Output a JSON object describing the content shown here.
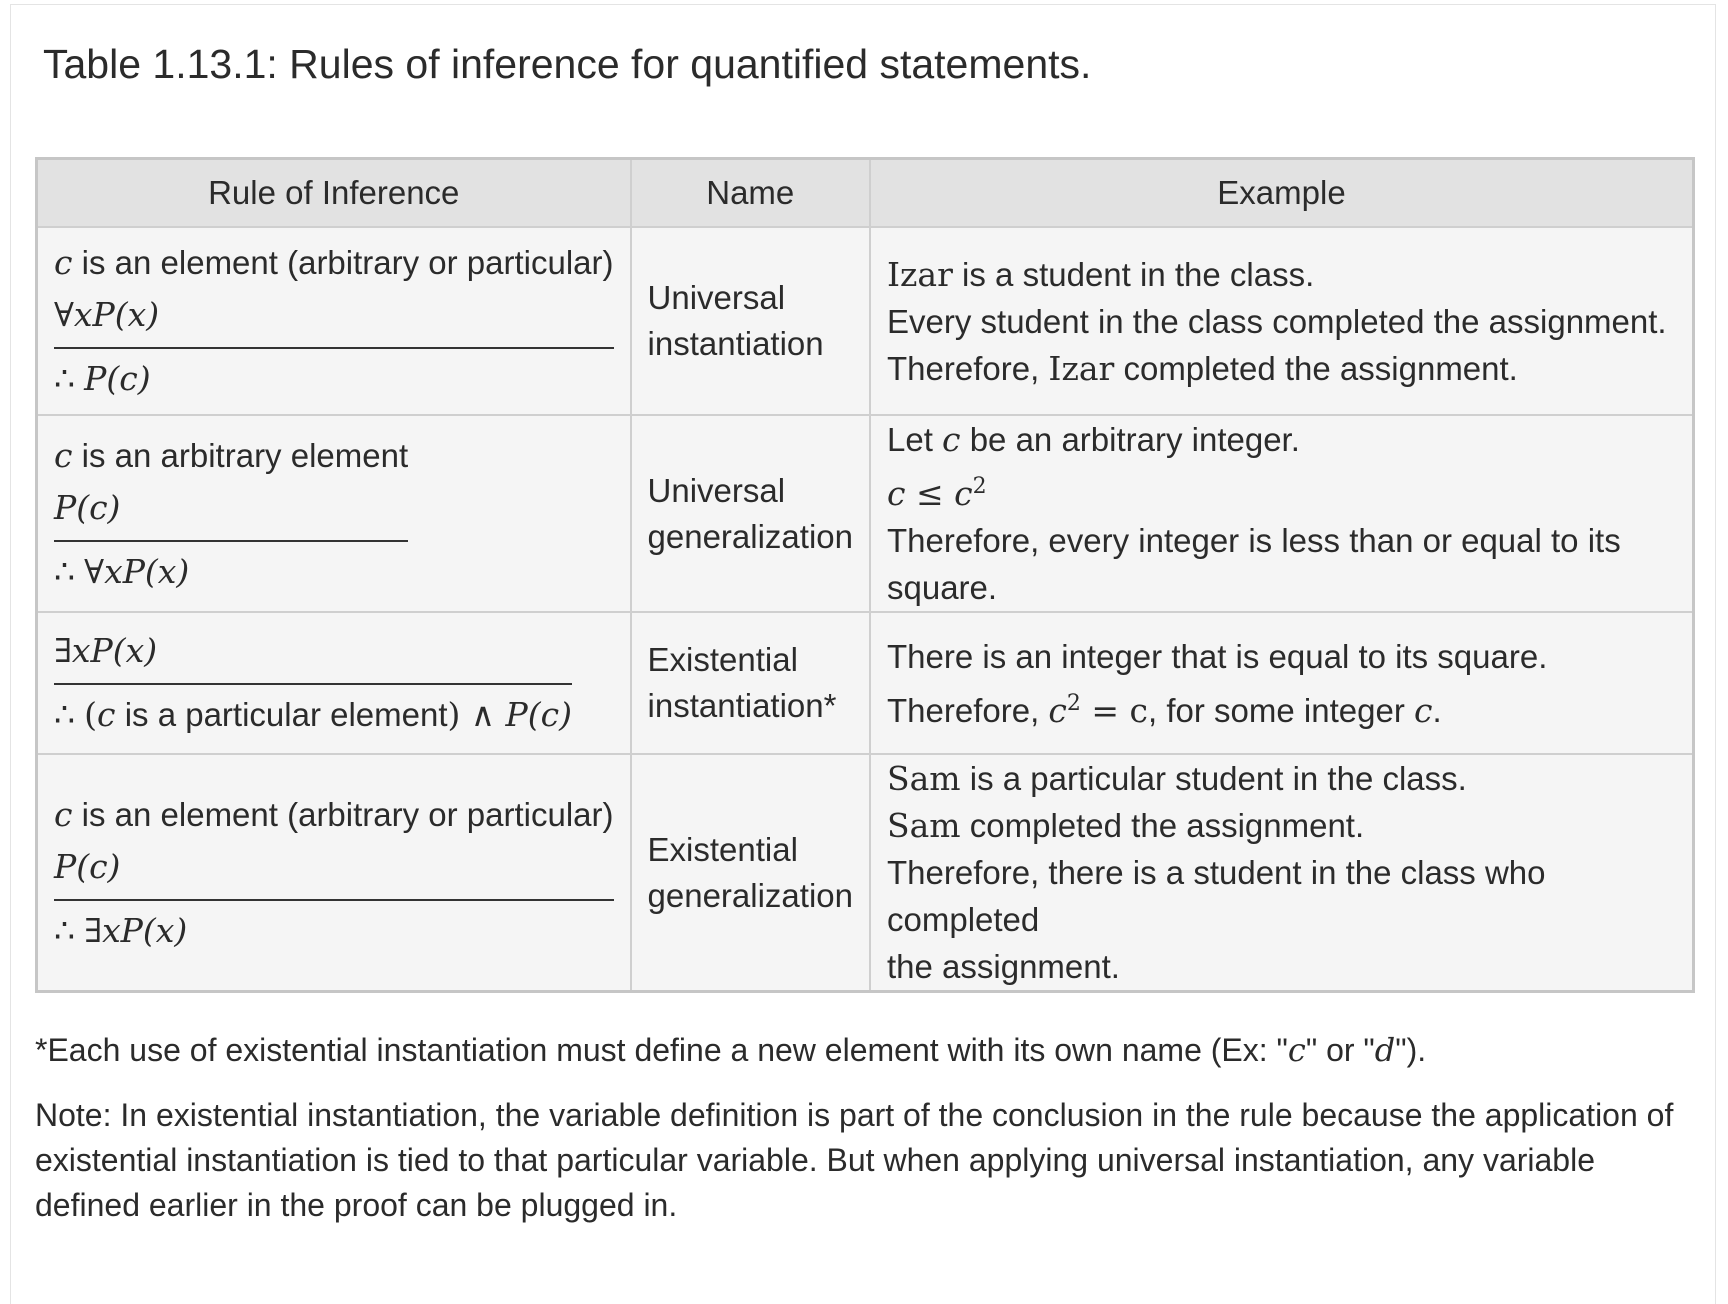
{
  "caption": "Table 1.13.1: Rules of inference for quantified statements.",
  "headers": {
    "rule": "Rule of Inference",
    "name": "Name",
    "example": "Example"
  },
  "rows": [
    {
      "rule": {
        "p1_var": "c",
        "p1_text": " is an element (arbitrary or particular)",
        "p2": "∀xP(x)",
        "therefore": "∴",
        "conclusion": "P(c)"
      },
      "name_line1": "Universal",
      "name_line2": "instantiation",
      "example": {
        "l1_name": "Izar",
        "l1_text": " is a student in the class.",
        "l2": "Every student in the class completed the assignment.",
        "l3_pre": "Therefore, ",
        "l3_name": "Izar",
        "l3_post": " completed the assignment."
      }
    },
    {
      "rule": {
        "p1_var": "c",
        "p1_text": " is an arbitrary element",
        "p2": "P(c)",
        "therefore": "∴",
        "conclusion": "∀xP(x)"
      },
      "name_line1": "Universal",
      "name_line2": "generalization",
      "example": {
        "l1_pre": "Let ",
        "l1_var": "c",
        "l1_post": " be an arbitrary integer.",
        "l2_lhs": "c ≤ c",
        "l2_exp": "2",
        "l3": "Therefore, every integer is less than or equal to its square."
      }
    },
    {
      "rule": {
        "p1": "∃xP(x)",
        "therefore": "∴",
        "c_open": "(",
        "c_var": "c",
        "c_text": " is a particular element",
        "c_close": ")",
        "c_and": " ∧ ",
        "c_pred": "P(c)"
      },
      "name_line1": "Existential",
      "name_line2": "instantiation*",
      "example": {
        "l1": "There is an integer that is equal to its square.",
        "l2_pre": "Therefore, ",
        "l2_base": "c",
        "l2_exp": "2",
        "l2_eq": " = c",
        "l2_post": ", for some integer ",
        "l2_var": "c",
        "l2_end": "."
      }
    },
    {
      "rule": {
        "p1_var": "c",
        "p1_text": " is an element (arbitrary or particular)",
        "p2": "P(c)",
        "therefore": "∴",
        "conclusion": "∃xP(x)"
      },
      "name_line1": "Existential",
      "name_line2": "generalization",
      "example": {
        "l1_name": "Sam",
        "l1_text": " is a particular student in the class.",
        "l2_name": "Sam",
        "l2_text": " completed the assignment.",
        "l3": "Therefore, there is a student in the class who completed",
        "l4": "the assignment."
      }
    }
  ],
  "footnote": {
    "pre": "*Each use of existential instantiation must define a new element with its own name (Ex: \"",
    "v1": "c",
    "mid": "\" or \"",
    "v2": "d",
    "post": "\")."
  },
  "note": "Note: In existential instantiation, the variable definition is part of the conclusion in the rule because the application of existential instantiation is tied to that particular variable. But when applying universal instantiation, any variable defined earlier in the proof can be plugged in."
}
